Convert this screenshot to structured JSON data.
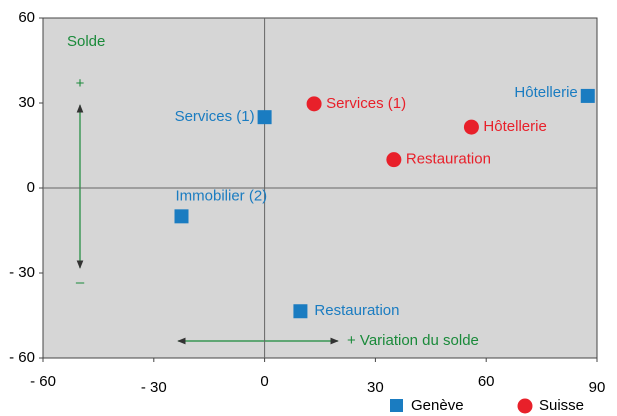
{
  "chart_data": {
    "type": "scatter",
    "annotations": {
      "y_label": "Solde",
      "plus": "+",
      "minus": "–",
      "x_label": "+ Variation du solde"
    },
    "series": [
      {
        "name": "Genève",
        "color": "#1a7cc1",
        "marker": "square",
        "labels": [
          "Services (1)",
          "Hôtellerie",
          "Immobilier (2)",
          "Restauration"
        ],
        "x": [
          0,
          87.5,
          -22.5,
          9.7
        ],
        "values": [
          25,
          32.5,
          -10,
          -43.5
        ]
      },
      {
        "name": "Suisse",
        "color": "#e8202a",
        "marker": "circle",
        "labels": [
          "Services (1)",
          "Hôtellerie",
          "Restauration"
        ],
        "x": [
          13.4,
          56,
          35
        ],
        "values": [
          29.7,
          21.5,
          10
        ]
      }
    ],
    "xlim": [
      -60,
      90
    ],
    "xticks": [
      {
        "value": -60,
        "label": "- 60"
      },
      {
        "value": -30,
        "label": "- 30"
      },
      0,
      30,
      60,
      90
    ],
    "ylim": [
      -60,
      60
    ],
    "yticks": [
      {
        "value": -60,
        "label": "- 60"
      },
      {
        "value": -30,
        "label": "- 30"
      },
      0,
      30,
      60
    ]
  }
}
